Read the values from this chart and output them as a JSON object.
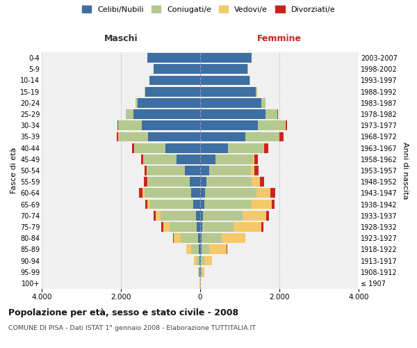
{
  "age_groups": [
    "100+",
    "95-99",
    "90-94",
    "85-89",
    "80-84",
    "75-79",
    "70-74",
    "65-69",
    "60-64",
    "55-59",
    "50-54",
    "45-49",
    "40-44",
    "35-39",
    "30-34",
    "25-29",
    "20-24",
    "15-19",
    "10-14",
    "5-9",
    "0-4"
  ],
  "birth_years": [
    "≤ 1907",
    "1908-1912",
    "1913-1917",
    "1918-1922",
    "1923-1927",
    "1928-1932",
    "1933-1937",
    "1938-1942",
    "1943-1947",
    "1948-1952",
    "1953-1957",
    "1958-1962",
    "1963-1967",
    "1968-1972",
    "1973-1977",
    "1978-1982",
    "1983-1987",
    "1988-1992",
    "1993-1997",
    "1998-2002",
    "2003-2007"
  ],
  "colors": {
    "celibi": "#3d6fa3",
    "coniugati": "#b5c98e",
    "vedovi": "#f5c96a",
    "divorziati": "#cc2222"
  },
  "maschi": {
    "celibi": [
      5,
      15,
      25,
      35,
      55,
      85,
      110,
      170,
      220,
      270,
      390,
      590,
      880,
      1320,
      1480,
      1680,
      1580,
      1380,
      1280,
      1180,
      1330
    ],
    "coniugati": [
      3,
      18,
      55,
      190,
      440,
      690,
      890,
      1090,
      1190,
      1040,
      940,
      840,
      790,
      740,
      590,
      190,
      45,
      25,
      5,
      4,
      4
    ],
    "vedovi": [
      4,
      28,
      75,
      125,
      175,
      155,
      115,
      75,
      48,
      28,
      18,
      9,
      4,
      4,
      4,
      4,
      4,
      4,
      0,
      0,
      0
    ],
    "divorziati": [
      0,
      0,
      4,
      8,
      8,
      48,
      58,
      58,
      78,
      78,
      58,
      58,
      48,
      48,
      18,
      8,
      4,
      0,
      0,
      0,
      0
    ]
  },
  "femmine": {
    "celibi": [
      4,
      18,
      22,
      28,
      38,
      52,
      78,
      108,
      128,
      158,
      228,
      378,
      698,
      1148,
      1448,
      1648,
      1548,
      1398,
      1248,
      1198,
      1298
    ],
    "coniugati": [
      4,
      28,
      78,
      198,
      498,
      798,
      998,
      1198,
      1298,
      1148,
      1048,
      948,
      898,
      848,
      698,
      298,
      98,
      38,
      8,
      4,
      4
    ],
    "vedovi": [
      8,
      58,
      198,
      448,
      598,
      698,
      598,
      498,
      348,
      198,
      98,
      48,
      18,
      8,
      4,
      4,
      0,
      0,
      0,
      0,
      0
    ],
    "divorziati": [
      0,
      0,
      4,
      4,
      8,
      48,
      68,
      78,
      118,
      118,
      98,
      78,
      98,
      98,
      48,
      8,
      4,
      0,
      0,
      0,
      0
    ]
  },
  "title": "Popolazione per età, sesso e stato civile - 2008",
  "subtitle": "COMUNE DI PISA - Dati ISTAT 1° gennaio 2008 - Elaborazione TUTTITALIA.IT",
  "xlabel_left": "Maschi",
  "xlabel_right": "Femmine",
  "ylabel_left": "Fasce di età",
  "ylabel_right": "Anni di nascita",
  "xlim": 4000,
  "legend_labels": [
    "Celibi/Nubili",
    "Coniugati/e",
    "Vedovi/e",
    "Divorziati/e"
  ],
  "bg_color": "#ffffff",
  "grid_color": "#cccccc"
}
